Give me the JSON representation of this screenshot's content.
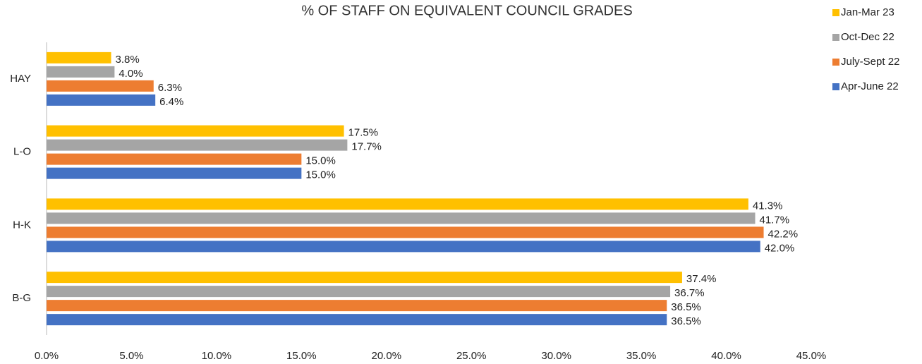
{
  "chart_data": {
    "type": "bar",
    "orientation": "horizontal",
    "title": "% OF STAFF ON EQUIVALENT COUNCIL GRADES",
    "categories": [
      "HAY",
      "L-O",
      "H-K",
      "B-G"
    ],
    "series": [
      {
        "name": "Jan-Mar 23",
        "color": "#ffc000",
        "values": [
          3.8,
          17.5,
          41.3,
          37.4
        ],
        "value_labels": [
          "3.8%",
          "17.5%",
          "41.3%",
          "37.4%"
        ]
      },
      {
        "name": "Oct-Dec 22",
        "color": "#a5a5a5",
        "values": [
          4.0,
          17.7,
          41.7,
          36.7
        ],
        "value_labels": [
          "4.0%",
          "17.7%",
          "41.7%",
          "36.7%"
        ]
      },
      {
        "name": "July-Sept 22",
        "color": "#ed7d31",
        "values": [
          6.3,
          15.0,
          42.2,
          36.5
        ],
        "value_labels": [
          "6.3%",
          "15.0%",
          "42.2%",
          "36.5%"
        ]
      },
      {
        "name": "Apr-June 22",
        "color": "#4472c4",
        "values": [
          6.4,
          15.0,
          42.0,
          36.5
        ],
        "value_labels": [
          "6.4%",
          "15.0%",
          "42.0%",
          "36.5%"
        ]
      }
    ],
    "xlim": [
      0,
      45
    ],
    "xticks": [
      {
        "value": 0,
        "label": "0.0%"
      },
      {
        "value": 5,
        "label": "5.0%"
      },
      {
        "value": 10,
        "label": "10.0%"
      },
      {
        "value": 15,
        "label": "15.0%"
      },
      {
        "value": 20,
        "label": "20.0%"
      },
      {
        "value": 25,
        "label": "25.0%"
      },
      {
        "value": 30,
        "label": "30.0%"
      },
      {
        "value": 35,
        "label": "35.0%"
      },
      {
        "value": 40,
        "label": "40.0%"
      },
      {
        "value": 45,
        "label": "45.0%"
      }
    ],
    "legend": "top-right",
    "grid": false
  }
}
